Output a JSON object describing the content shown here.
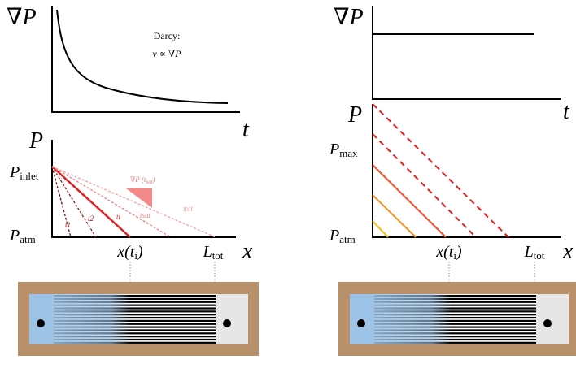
{
  "left": {
    "top_panel": {
      "y_label": "∇P",
      "x_label": "t",
      "note_title": "Darcy:",
      "note_formula": "v ∝ ∇P"
    },
    "bottom_panel": {
      "y_label": "P",
      "x_label": "x",
      "inlet_label": {
        "base": "P",
        "sub": "inlet"
      },
      "atm_label": {
        "base": "P",
        "sub": "atm"
      },
      "front_label": {
        "base": "x(t",
        "sub": "i",
        "close": ")"
      },
      "length_label": {
        "base": "L",
        "sub": "tot"
      },
      "curve_labels": [
        "t1",
        "t2",
        "ti",
        "tsat",
        "ttot"
      ],
      "slope_label": {
        "base": "∇P (t",
        "sub": "sat",
        "close": ")"
      }
    }
  },
  "right": {
    "top_panel": {
      "y_label": "∇P",
      "x_label": "t"
    },
    "bottom_panel": {
      "y_label": "P",
      "x_label": "x",
      "max_label": {
        "base": "P",
        "sub": "max"
      },
      "atm_label": {
        "base": "P",
        "sub": "atm"
      },
      "front_label": {
        "base": "x(t",
        "sub": "i",
        "close": ")"
      },
      "length_label": {
        "base": "L",
        "sub": "tot"
      }
    }
  }
}
